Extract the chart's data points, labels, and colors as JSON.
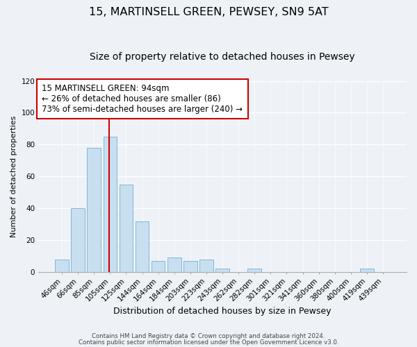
{
  "title": "15, MARTINSELL GREEN, PEWSEY, SN9 5AT",
  "subtitle": "Size of property relative to detached houses in Pewsey",
  "xlabel": "Distribution of detached houses by size in Pewsey",
  "ylabel": "Number of detached properties",
  "bar_labels": [
    "46sqm",
    "66sqm",
    "85sqm",
    "105sqm",
    "125sqm",
    "144sqm",
    "164sqm",
    "184sqm",
    "203sqm",
    "223sqm",
    "243sqm",
    "262sqm",
    "282sqm",
    "301sqm",
    "321sqm",
    "341sqm",
    "360sqm",
    "380sqm",
    "400sqm",
    "419sqm",
    "439sqm"
  ],
  "bar_values": [
    8,
    40,
    78,
    85,
    55,
    32,
    7,
    9,
    7,
    8,
    2,
    0,
    2,
    0,
    0,
    0,
    0,
    0,
    0,
    2,
    0
  ],
  "bar_color": "#c8dff0",
  "bar_edge_color": "#7fb8d8",
  "vline_color": "#cc0000",
  "annotation_title": "15 MARTINSELL GREEN: 94sqm",
  "annotation_line1": "← 26% of detached houses are smaller (86)",
  "annotation_line2": "73% of semi-detached houses are larger (240) →",
  "annotation_box_color": "#ffffff",
  "annotation_box_edge": "#cc0000",
  "ylim": [
    0,
    120
  ],
  "yticks": [
    0,
    20,
    40,
    60,
    80,
    100,
    120
  ],
  "footnote1": "Contains HM Land Registry data © Crown copyright and database right 2024.",
  "footnote2": "Contains public sector information licensed under the Open Government Licence v3.0.",
  "background_color": "#eef2f7",
  "title_fontsize": 11.5,
  "subtitle_fontsize": 10,
  "annotation_fontsize": 8.5,
  "tick_fontsize": 7.5,
  "ylabel_fontsize": 8,
  "xlabel_fontsize": 9
}
